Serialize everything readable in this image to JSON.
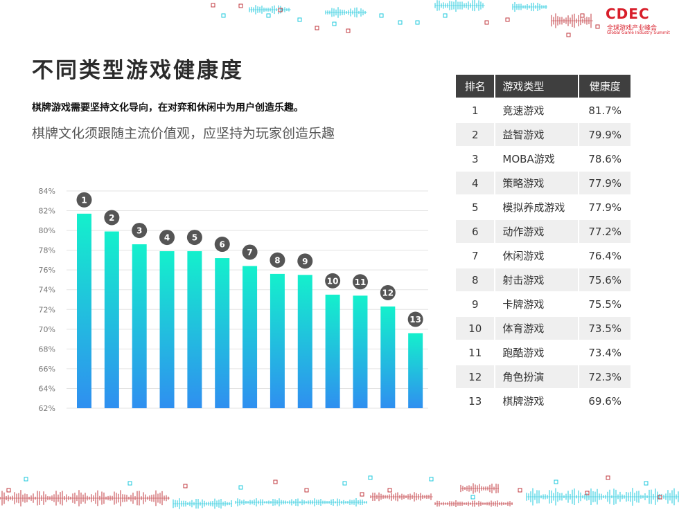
{
  "logo": {
    "mark": "CDEC",
    "cn": "全球游戏产业峰会",
    "en": "Global Game Industry Summit"
  },
  "title": "不同类型游戏健康度",
  "subtitle_1": "棋牌游戏需要坚持文化导向，在对弈和休闲中为用户创造乐趣。",
  "subtitle_2": "棋牌文化须跟随主流价值观，应坚持为玩家创造乐趣",
  "colors": {
    "bar_top": "#14f0cc",
    "bar_bottom": "#2f8ff0",
    "badge": "#555555",
    "accent": "#d81e2a",
    "deco_cyan": "#1ec8dc",
    "deco_red": "#c0393f",
    "table_header": "#3f3f3f"
  },
  "chart_data": {
    "type": "bar",
    "categories": [
      "1",
      "2",
      "3",
      "4",
      "5",
      "6",
      "7",
      "8",
      "9",
      "10",
      "11",
      "12",
      "13"
    ],
    "values": [
      81.7,
      79.9,
      78.6,
      77.9,
      77.9,
      77.2,
      76.4,
      75.6,
      75.5,
      73.5,
      73.4,
      72.3,
      69.6
    ],
    "ylim": [
      62,
      84
    ],
    "yticks": [
      62,
      64,
      66,
      68,
      70,
      72,
      74,
      76,
      78,
      80,
      82,
      84
    ],
    "ytick_labels": [
      "62%",
      "64%",
      "66%",
      "68%",
      "70%",
      "72%",
      "74%",
      "76%",
      "78%",
      "80%",
      "82%",
      "84%"
    ],
    "grid": true,
    "title": "",
    "xlabel": "",
    "ylabel": ""
  },
  "table": {
    "headers": [
      "排名",
      "游戏类型",
      "健康度"
    ],
    "rows": [
      {
        "rank": "1",
        "name": "竞速游戏",
        "score": "81.7%"
      },
      {
        "rank": "2",
        "name": "益智游戏",
        "score": "79.9%"
      },
      {
        "rank": "3",
        "name": "MOBA游戏",
        "score": "78.6%"
      },
      {
        "rank": "4",
        "name": "策略游戏",
        "score": "77.9%"
      },
      {
        "rank": "5",
        "name": "模拟养成游戏",
        "score": "77.9%"
      },
      {
        "rank": "6",
        "name": "动作游戏",
        "score": "77.2%"
      },
      {
        "rank": "7",
        "name": "休闲游戏",
        "score": "76.4%"
      },
      {
        "rank": "8",
        "name": "射击游戏",
        "score": "75.6%"
      },
      {
        "rank": "9",
        "name": "卡牌游戏",
        "score": "75.5%"
      },
      {
        "rank": "10",
        "name": "体育游戏",
        "score": "73.5%"
      },
      {
        "rank": "11",
        "name": "跑酷游戏",
        "score": "73.4%"
      },
      {
        "rank": "12",
        "name": "角色扮演",
        "score": "72.3%"
      },
      {
        "rank": "13",
        "name": "棋牌游戏",
        "score": "69.6%"
      }
    ]
  }
}
